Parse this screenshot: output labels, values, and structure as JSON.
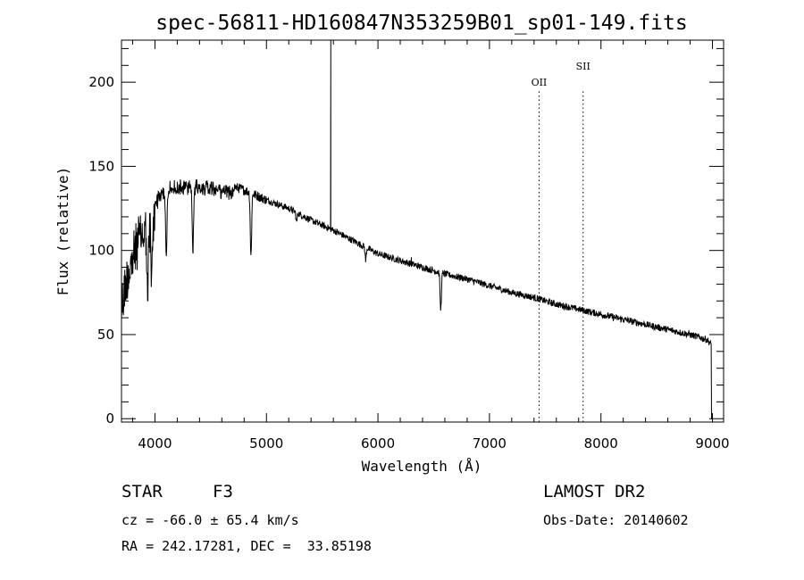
{
  "chart_data": {
    "type": "line",
    "title": "spec-56811-HD160847N353259B01_sp01-149.fits",
    "xlabel": "Wavelength (Å)",
    "ylabel": "Flux (relative)",
    "xlim": [
      3700,
      9100
    ],
    "ylim": [
      -2,
      225
    ],
    "x_ticks": [
      4000,
      5000,
      6000,
      7000,
      8000,
      9000
    ],
    "y_ticks": [
      0,
      50,
      100,
      150,
      200
    ],
    "grid": false,
    "continuum": {
      "x": [
        3700,
        3750,
        3800,
        3850,
        3900,
        3950,
        4000,
        4050,
        4100,
        4200,
        4300,
        4400,
        4500,
        4600,
        4700,
        4800,
        4900,
        5000,
        5200,
        5400,
        5600,
        5800,
        6000,
        6200,
        6400,
        6600,
        6800,
        7000,
        7200,
        7400,
        7600,
        7800,
        8000,
        8200,
        8400,
        8600,
        8800,
        8950,
        8990,
        9000
      ],
      "y": [
        80,
        100,
        110,
        120,
        125,
        130,
        132,
        135,
        138,
        140,
        141,
        141,
        140,
        139,
        138,
        136,
        133,
        130,
        125,
        118,
        112,
        105,
        98,
        94,
        90,
        86,
        83,
        79,
        75,
        72,
        68,
        65,
        62,
        59,
        56,
        53,
        50,
        47,
        44,
        0
      ]
    },
    "absorption_lines": [
      {
        "x": 3934,
        "depth": 45
      },
      {
        "x": 3969,
        "depth": 40
      },
      {
        "x": 4102,
        "depth": 40
      },
      {
        "x": 4340,
        "depth": 40
      },
      {
        "x": 4861,
        "depth": 38
      },
      {
        "x": 5270,
        "depth": 6
      },
      {
        "x": 5890,
        "depth": 8
      },
      {
        "x": 6563,
        "depth": 22
      }
    ],
    "emission_lines": [
      {
        "x": 5577,
        "peak": 225
      },
      {
        "x": 6300,
        "peak": 96
      }
    ],
    "marked_lines": [
      {
        "label": "OII",
        "x": 7445
      },
      {
        "label": "SII",
        "x": 7840
      }
    ]
  },
  "info": {
    "object_class": "STAR",
    "subclass": "F3",
    "survey": "LAMOST DR2",
    "redshift": "cz = -66.0 ± 65.4 km/s",
    "obs_date": "Obs-Date: 20140602",
    "coords": "RA = 242.17281, DEC =  33.85198"
  }
}
